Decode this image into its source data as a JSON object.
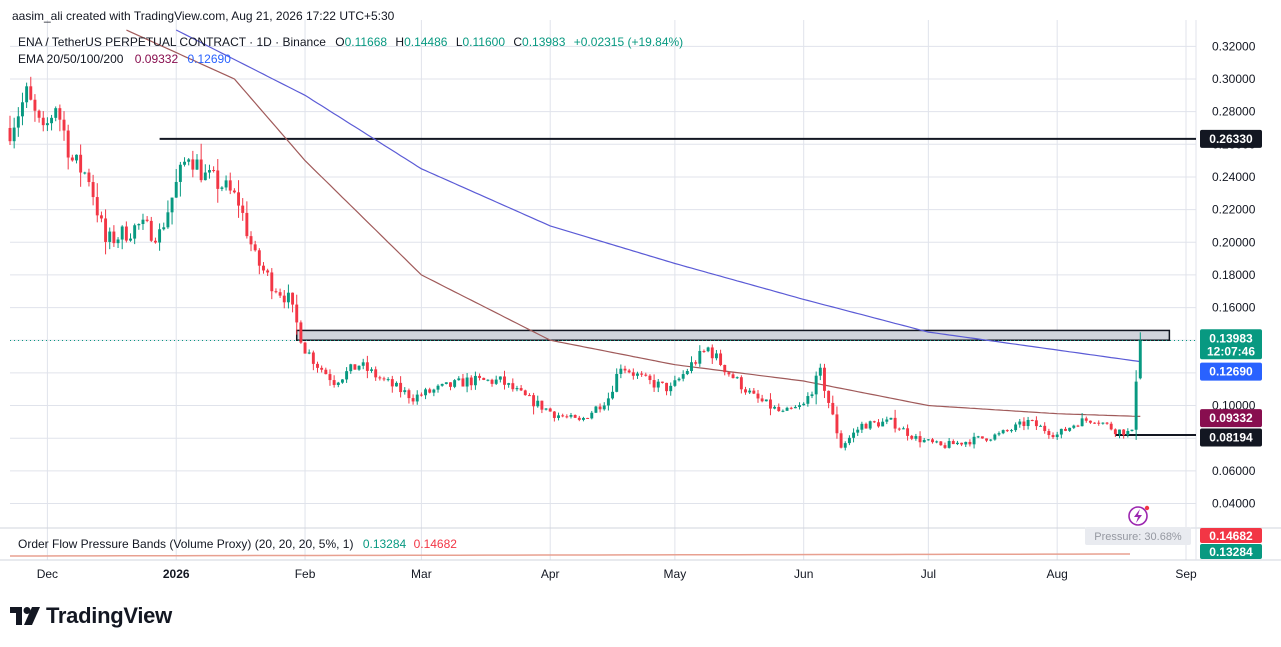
{
  "attribution": "aasim_ali created with TradingView.com, Aug 21, 2026 17:22 UTC+5:30",
  "legend": {
    "symbol": "ENA / TetherUS PERPETUAL CONTRACT · 1D · Binance",
    "open_label": "O",
    "open": "0.11668",
    "high_label": "H",
    "high": "0.14486",
    "low_label": "L",
    "low": "0.11600",
    "close_label": "C",
    "close": "0.13983",
    "change": "+0.02315 (+19.84%)",
    "ema_label": "EMA 20/50/100/200",
    "ema_fast": "0.09332",
    "ema_slow": "0.12690"
  },
  "indicator": {
    "label": "Order Flow Pressure Bands (Volume Proxy) (20, 20, 20, 5%, 1)",
    "lower": "0.13284",
    "upper": "0.14682",
    "pressure_text": "Pressure: 30.68%"
  },
  "price_labels": {
    "resistance": "0.26330",
    "last": "0.13983",
    "countdown": "12:07:46",
    "ema_slow": "0.12690",
    "ema_fast": "0.09332",
    "support": "0.08194",
    "band_upper": "0.14682",
    "band_lower": "0.13284"
  },
  "brand": "TradingView",
  "colors": {
    "up": "#089981",
    "down": "#f23645",
    "ema_slow": "#5b5bd6",
    "ema_fast": "#a05a5a",
    "ema_fast_label": "#880e4f",
    "ema_slow_label": "#2962ff",
    "grid": "#e0e3eb",
    "band": "#d1d4dc"
  },
  "chart_data": {
    "type": "candlestick",
    "title": "ENA / TetherUS PERPETUAL CONTRACT · 1D · Binance",
    "y_ticks": [
      0.04,
      0.06,
      0.08,
      0.1,
      0.12,
      0.14,
      0.16,
      0.18,
      0.2,
      0.22,
      0.24,
      0.26,
      0.28,
      0.3,
      0.32
    ],
    "ylim": [
      0.025,
      0.33
    ],
    "x_labels": [
      {
        "date": "2025-12-01",
        "label": "Dec"
      },
      {
        "date": "2026-01-01",
        "label": "2026"
      },
      {
        "date": "2026-02-01",
        "label": "Feb"
      },
      {
        "date": "2026-03-01",
        "label": "Mar"
      },
      {
        "date": "2026-04-01",
        "label": "Apr"
      },
      {
        "date": "2026-05-01",
        "label": "May"
      },
      {
        "date": "2026-06-01",
        "label": "Jun"
      },
      {
        "date": "2026-07-01",
        "label": "Jul"
      },
      {
        "date": "2026-08-01",
        "label": "Aug"
      },
      {
        "date": "2026-09-01",
        "label": "Sep"
      }
    ],
    "x_start": "2025-11-22",
    "x_end": "2026-09-01",
    "close_path": [
      [
        "2025-11-22",
        0.27
      ],
      [
        "2025-11-26",
        0.29
      ],
      [
        "2025-11-30",
        0.265
      ],
      [
        "2025-12-03",
        0.285
      ],
      [
        "2025-12-07",
        0.25
      ],
      [
        "2025-12-11",
        0.24
      ],
      [
        "2025-12-15",
        0.2
      ],
      [
        "2025-12-19",
        0.205
      ],
      [
        "2025-12-23",
        0.21
      ],
      [
        "2025-12-28",
        0.205
      ],
      [
        "2026-01-01",
        0.235
      ],
      [
        "2026-01-04",
        0.255
      ],
      [
        "2026-01-08",
        0.24
      ],
      [
        "2026-01-12",
        0.235
      ],
      [
        "2026-01-16",
        0.225
      ],
      [
        "2026-01-20",
        0.19
      ],
      [
        "2026-01-24",
        0.175
      ],
      [
        "2026-01-28",
        0.165
      ],
      [
        "2026-02-01",
        0.135
      ],
      [
        "2026-02-04",
        0.125
      ],
      [
        "2026-02-08",
        0.115
      ],
      [
        "2026-02-14",
        0.125
      ],
      [
        "2026-02-20",
        0.115
      ],
      [
        "2026-02-27",
        0.105
      ],
      [
        "2026-03-05",
        0.11
      ],
      [
        "2026-03-12",
        0.115
      ],
      [
        "2026-03-20",
        0.115
      ],
      [
        "2026-03-26",
        0.105
      ],
      [
        "2026-04-02",
        0.095
      ],
      [
        "2026-04-08",
        0.09
      ],
      [
        "2026-04-15",
        0.105
      ],
      [
        "2026-04-18",
        0.125
      ],
      [
        "2026-04-24",
        0.115
      ],
      [
        "2026-04-30",
        0.11
      ],
      [
        "2026-05-05",
        0.125
      ],
      [
        "2026-05-09",
        0.135
      ],
      [
        "2026-05-14",
        0.12
      ],
      [
        "2026-05-20",
        0.105
      ],
      [
        "2026-05-27",
        0.095
      ],
      [
        "2026-06-01",
        0.1
      ],
      [
        "2026-06-05",
        0.12
      ],
      [
        "2026-06-10",
        0.075
      ],
      [
        "2026-06-15",
        0.088
      ],
      [
        "2026-06-22",
        0.09
      ],
      [
        "2026-06-28",
        0.08
      ],
      [
        "2026-07-04",
        0.075
      ],
      [
        "2026-07-10",
        0.078
      ],
      [
        "2026-07-18",
        0.082
      ],
      [
        "2026-07-25",
        0.09
      ],
      [
        "2026-08-01",
        0.082
      ],
      [
        "2026-08-06",
        0.09
      ],
      [
        "2026-08-10",
        0.092
      ],
      [
        "2026-08-15",
        0.085
      ],
      [
        "2026-08-19",
        0.083
      ],
      [
        "2026-08-20",
        0.117
      ],
      [
        "2026-08-21",
        0.1398
      ]
    ],
    "last_candle": {
      "date": "2026-08-21",
      "open": 0.11668,
      "high": 0.14486,
      "low": 0.116,
      "close": 0.13983
    },
    "ema_slow_path": [
      [
        "2026-01-01",
        0.33
      ],
      [
        "2026-02-01",
        0.29
      ],
      [
        "2026-03-01",
        0.245
      ],
      [
        "2026-04-01",
        0.21
      ],
      [
        "2026-05-01",
        0.187
      ],
      [
        "2026-06-01",
        0.165
      ],
      [
        "2026-07-01",
        0.145
      ],
      [
        "2026-08-01",
        0.134
      ],
      [
        "2026-08-21",
        0.1269
      ]
    ],
    "ema_fast_path": [
      [
        "2025-12-20",
        0.33
      ],
      [
        "2026-01-15",
        0.3
      ],
      [
        "2026-02-01",
        0.25
      ],
      [
        "2026-03-01",
        0.18
      ],
      [
        "2026-04-01",
        0.14
      ],
      [
        "2026-05-01",
        0.125
      ],
      [
        "2026-06-01",
        0.115
      ],
      [
        "2026-07-01",
        0.1
      ],
      [
        "2026-08-01",
        0.095
      ],
      [
        "2026-08-21",
        0.09332
      ]
    ],
    "horizontal_lines": [
      {
        "name": "resistance",
        "value": 0.2633,
        "from": "2025-12-28"
      },
      {
        "name": "support",
        "value": 0.08194,
        "from": "2026-08-15"
      }
    ],
    "zone": {
      "from": "2026-01-30",
      "to": "2026-08-28",
      "low": 0.14,
      "high": 0.146
    },
    "grid": true
  }
}
